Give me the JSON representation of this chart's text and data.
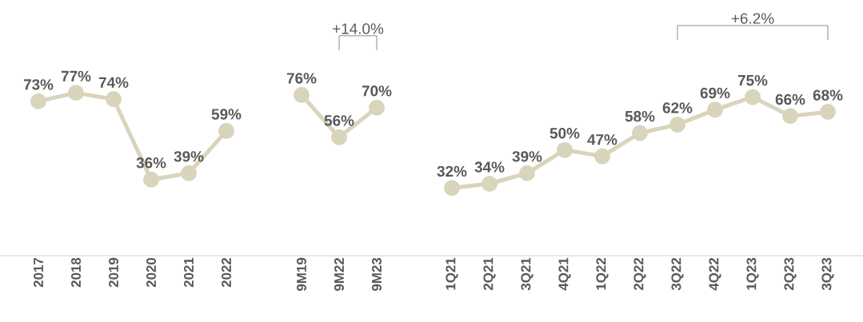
{
  "chart_data": {
    "type": "line",
    "categories": [
      "2017",
      "2018",
      "2019",
      "2020",
      "2021",
      "2022",
      null,
      "9M19",
      "9M22",
      "9M23",
      null,
      "1Q21",
      "2Q21",
      "3Q21",
      "4Q21",
      "1Q22",
      "2Q22",
      "3Q22",
      "4Q22",
      "1Q23",
      "2Q23",
      "3Q23"
    ],
    "series": [
      {
        "color": "#d9d4bc",
        "values": [
          73,
          77,
          74,
          36,
          39,
          59,
          null,
          76,
          56,
          70,
          null,
          32,
          34,
          39,
          50,
          47,
          58,
          62,
          69,
          75,
          66,
          68
        ],
        "value_labels": [
          "73%",
          "77%",
          "74%",
          "36%",
          "39%",
          "59%",
          null,
          "76%",
          "56%",
          "70%",
          null,
          "32%",
          "34%",
          "39%",
          "50%",
          "47%",
          "58%",
          "62%",
          "69%",
          "75%",
          "66%",
          "68%"
        ]
      }
    ],
    "marker": "circle",
    "line_style": "solid",
    "annotations": [
      "+14.0%",
      "+6.2%"
    ]
  }
}
